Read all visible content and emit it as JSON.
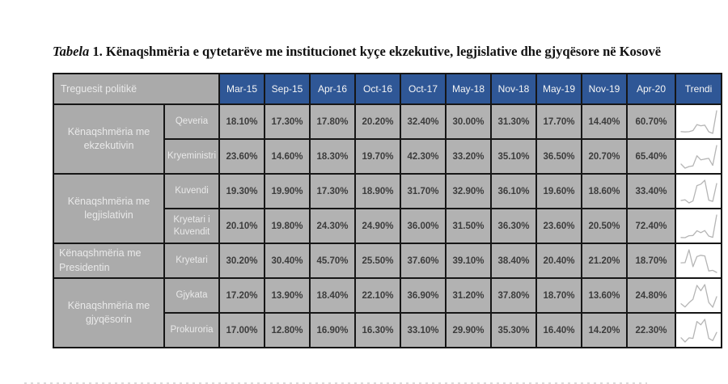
{
  "caption": {
    "italic_part": "Tabela",
    "bold_part": " 1. Kënaqshmëria e qytetarëve me institucionet kyçe ekzekutive, legjislative dhe gjyqësore në Kosovë"
  },
  "table": {
    "header_left": "Treguesit politikë",
    "trend_header": "Trendi",
    "columns": [
      "Mar-15",
      "Sep-15",
      "Apr-16",
      "Oct-16",
      "Oct-17",
      "May-18",
      "Nov-18",
      "May-19",
      "Nov-19",
      "Apr-20"
    ],
    "groups": [
      {
        "label": "Kënaqshmëria me ekzekutivin",
        "rows": [
          {
            "label": "Qeveria",
            "values": [
              18.1,
              17.3,
              17.8,
              20.2,
              32.4,
              30.0,
              31.3,
              17.7,
              14.4,
              60.7
            ]
          },
          {
            "label": "Kryeministri",
            "values": [
              23.6,
              14.6,
              18.3,
              19.7,
              42.3,
              33.2,
              35.1,
              36.5,
              20.7,
              65.4
            ]
          }
        ]
      },
      {
        "label": "Kënaqshmëria me legjislativin",
        "rows": [
          {
            "label": "Kuvendi",
            "values": [
              19.3,
              19.9,
              17.3,
              18.9,
              31.7,
              32.9,
              36.1,
              19.6,
              18.6,
              33.4
            ]
          },
          {
            "label": "Kryetari i Kuvendit",
            "values": [
              20.1,
              19.8,
              24.3,
              24.9,
              36.0,
              31.5,
              36.3,
              23.6,
              20.5,
              72.4
            ]
          }
        ]
      },
      {
        "label": "Kënaqshmëria me Presidentin",
        "rows": [
          {
            "label": "Kryetari",
            "values": [
              30.2,
              30.4,
              45.7,
              25.5,
              37.6,
              39.1,
              38.4,
              20.4,
              21.2,
              18.7
            ]
          }
        ]
      },
      {
        "label": "Kënaqshmëria me gjyqësorin",
        "rows": [
          {
            "label": "Gjykata",
            "values": [
              17.2,
              13.9,
              18.4,
              22.1,
              36.9,
              31.2,
              37.8,
              18.7,
              13.6,
              24.8
            ]
          },
          {
            "label": "Prokuroria",
            "values": [
              17.0,
              12.8,
              16.9,
              16.3,
              33.1,
              29.9,
              35.3,
              16.4,
              14.2,
              22.3
            ]
          }
        ]
      }
    ]
  },
  "colors": {
    "header_blue": "#2f5796",
    "label_gray": "#ababab",
    "value_gray": "#b2b2b2",
    "border_black": "#161616",
    "sparkline_gray": "#b5b5b5",
    "label_text": "#e9e9e9",
    "value_text": "#3c3c3c"
  },
  "chart_data": {
    "type": "table",
    "title": "Tabela 1. Kënaqshmëria e qytetarëve me institucionet kyçe ekzekutive, legjislative dhe gjyqësore në Kosovë",
    "categories": [
      "Mar-15",
      "Sep-15",
      "Apr-16",
      "Oct-16",
      "Oct-17",
      "May-18",
      "Nov-18",
      "May-19",
      "Nov-19",
      "Apr-20"
    ],
    "unit": "%",
    "row_header": "Treguesit politikë",
    "trend_column": "Trendi",
    "series": [
      {
        "group": "Kënaqshmëria me ekzekutivin",
        "name": "Qeveria",
        "values": [
          18.1,
          17.3,
          17.8,
          20.2,
          32.4,
          30.0,
          31.3,
          17.7,
          14.4,
          60.7
        ]
      },
      {
        "group": "Kënaqshmëria me ekzekutivin",
        "name": "Kryeministri",
        "values": [
          23.6,
          14.6,
          18.3,
          19.7,
          42.3,
          33.2,
          35.1,
          36.5,
          20.7,
          65.4
        ]
      },
      {
        "group": "Kënaqshmëria me legjislativin",
        "name": "Kuvendi",
        "values": [
          19.3,
          19.9,
          17.3,
          18.9,
          31.7,
          32.9,
          36.1,
          19.6,
          18.6,
          33.4
        ]
      },
      {
        "group": "Kënaqshmëria me legjislativin",
        "name": "Kryetari i Kuvendit",
        "values": [
          20.1,
          19.8,
          24.3,
          24.9,
          36.0,
          31.5,
          36.3,
          23.6,
          20.5,
          72.4
        ]
      },
      {
        "group": "Kënaqshmëria me Presidentin",
        "name": "Kryetari",
        "values": [
          30.2,
          30.4,
          45.7,
          25.5,
          37.6,
          39.1,
          38.4,
          20.4,
          21.2,
          18.7
        ]
      },
      {
        "group": "Kënaqshmëria me gjyqësorin",
        "name": "Gjykata",
        "values": [
          17.2,
          13.9,
          18.4,
          22.1,
          36.9,
          31.2,
          37.8,
          18.7,
          13.6,
          24.8
        ]
      },
      {
        "group": "Kënaqshmëria me gjyqësorin",
        "name": "Prokuroria",
        "values": [
          17.0,
          12.8,
          16.9,
          16.3,
          33.1,
          29.9,
          35.3,
          16.4,
          14.2,
          22.3
        ]
      }
    ]
  }
}
